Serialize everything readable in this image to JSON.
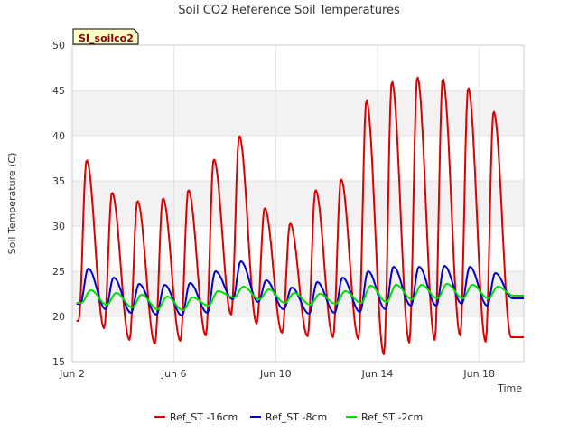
{
  "chart_data": {
    "type": "line",
    "title": "Soil CO2 Reference Soil Temperatures",
    "xlabel": "Time",
    "ylabel": "Soil Temperature (C)",
    "badge": "SI_soilco2",
    "ylim": [
      15,
      50
    ],
    "yticks": [
      15,
      20,
      25,
      30,
      35,
      40,
      45,
      50
    ],
    "xlim": [
      "2021-06-02",
      "2021-06-19 18:00"
    ],
    "xticks": [
      {
        "date": "2021-06-02",
        "label": "Jun 2"
      },
      {
        "date": "2021-06-06",
        "label": "Jun 6"
      },
      {
        "date": "2021-06-10",
        "label": "Jun 10"
      },
      {
        "date": "2021-06-14",
        "label": "Jun 14"
      },
      {
        "date": "2021-06-18",
        "label": "Jun 18"
      }
    ],
    "grid": true,
    "legend_position": "bottom",
    "colors": {
      "Ref_ST -16cm": "#dd0000",
      "Ref_ST -8cm": "#0000cc",
      "Ref_ST -2cm": "#00dd00"
    },
    "daily": [
      {
        "date": "2021-06-02",
        "-16cm": [
          19.5,
          37.3
        ],
        "-8cm": [
          21.4,
          25.3
        ],
        "-2cm": [
          21.5,
          22.9
        ]
      },
      {
        "date": "2021-06-03",
        "-16cm": [
          18.7,
          33.7
        ],
        "-8cm": [
          20.8,
          24.3
        ],
        "-2cm": [
          21.3,
          22.6
        ]
      },
      {
        "date": "2021-06-04",
        "-16cm": [
          17.4,
          32.8
        ],
        "-8cm": [
          20.4,
          23.6
        ],
        "-2cm": [
          21.0,
          22.4
        ]
      },
      {
        "date": "2021-06-05",
        "-16cm": [
          17.0,
          33.1
        ],
        "-8cm": [
          20.2,
          23.5
        ],
        "-2cm": [
          20.8,
          22.2
        ]
      },
      {
        "date": "2021-06-06",
        "-16cm": [
          17.3,
          34.0
        ],
        "-8cm": [
          20.1,
          23.7
        ],
        "-2cm": [
          20.7,
          22.1
        ]
      },
      {
        "date": "2021-06-07",
        "-16cm": [
          17.9,
          37.4
        ],
        "-8cm": [
          20.4,
          25.0
        ],
        "-2cm": [
          21.2,
          22.8
        ]
      },
      {
        "date": "2021-06-08",
        "-16cm": [
          20.2,
          40.0
        ],
        "-8cm": [
          21.9,
          26.1
        ],
        "-2cm": [
          22.1,
          23.3
        ]
      },
      {
        "date": "2021-06-09",
        "-16cm": [
          19.2,
          32.0
        ],
        "-8cm": [
          21.6,
          24.0
        ],
        "-2cm": [
          21.9,
          23.0
        ]
      },
      {
        "date": "2021-06-10",
        "-16cm": [
          18.2,
          30.3
        ],
        "-8cm": [
          20.8,
          23.2
        ],
        "-2cm": [
          21.5,
          22.6
        ]
      },
      {
        "date": "2021-06-11",
        "-16cm": [
          17.8,
          34.0
        ],
        "-8cm": [
          20.3,
          23.8
        ],
        "-2cm": [
          21.3,
          22.5
        ]
      },
      {
        "date": "2021-06-12",
        "-16cm": [
          17.7,
          35.2
        ],
        "-8cm": [
          20.4,
          24.3
        ],
        "-2cm": [
          21.4,
          22.8
        ]
      },
      {
        "date": "2021-06-13",
        "-16cm": [
          17.5,
          43.9
        ],
        "-8cm": [
          20.5,
          25.0
        ],
        "-2cm": [
          21.5,
          23.4
        ]
      },
      {
        "date": "2021-06-14",
        "-16cm": [
          15.8,
          46.0
        ],
        "-8cm": [
          20.8,
          25.5
        ],
        "-2cm": [
          21.6,
          23.5
        ]
      },
      {
        "date": "2021-06-15",
        "-16cm": [
          17.1,
          46.5
        ],
        "-8cm": [
          21.2,
          25.5
        ],
        "-2cm": [
          21.9,
          23.5
        ]
      },
      {
        "date": "2021-06-16",
        "-16cm": [
          17.4,
          46.3
        ],
        "-8cm": [
          21.2,
          25.6
        ],
        "-2cm": [
          22.0,
          23.6
        ]
      },
      {
        "date": "2021-06-17",
        "-16cm": [
          17.9,
          45.3
        ],
        "-8cm": [
          21.4,
          25.5
        ],
        "-2cm": [
          22.0,
          23.5
        ]
      },
      {
        "date": "2021-06-18",
        "-16cm": [
          17.2,
          42.7
        ],
        "-8cm": [
          21.2,
          24.8
        ],
        "-2cm": [
          22.0,
          23.3
        ]
      },
      {
        "date": "2021-06-19",
        "-16cm": [
          17.7,
          17.7
        ],
        "-8cm": [
          22.0,
          22.0
        ],
        "-2cm": [
          22.3,
          22.3
        ]
      }
    ],
    "series": [
      {
        "name": "Ref_ST -16cm",
        "key": "-16cm"
      },
      {
        "name": "Ref_ST -8cm",
        "key": "-8cm"
      },
      {
        "name": "Ref_ST -2cm",
        "key": "-2cm"
      }
    ]
  }
}
